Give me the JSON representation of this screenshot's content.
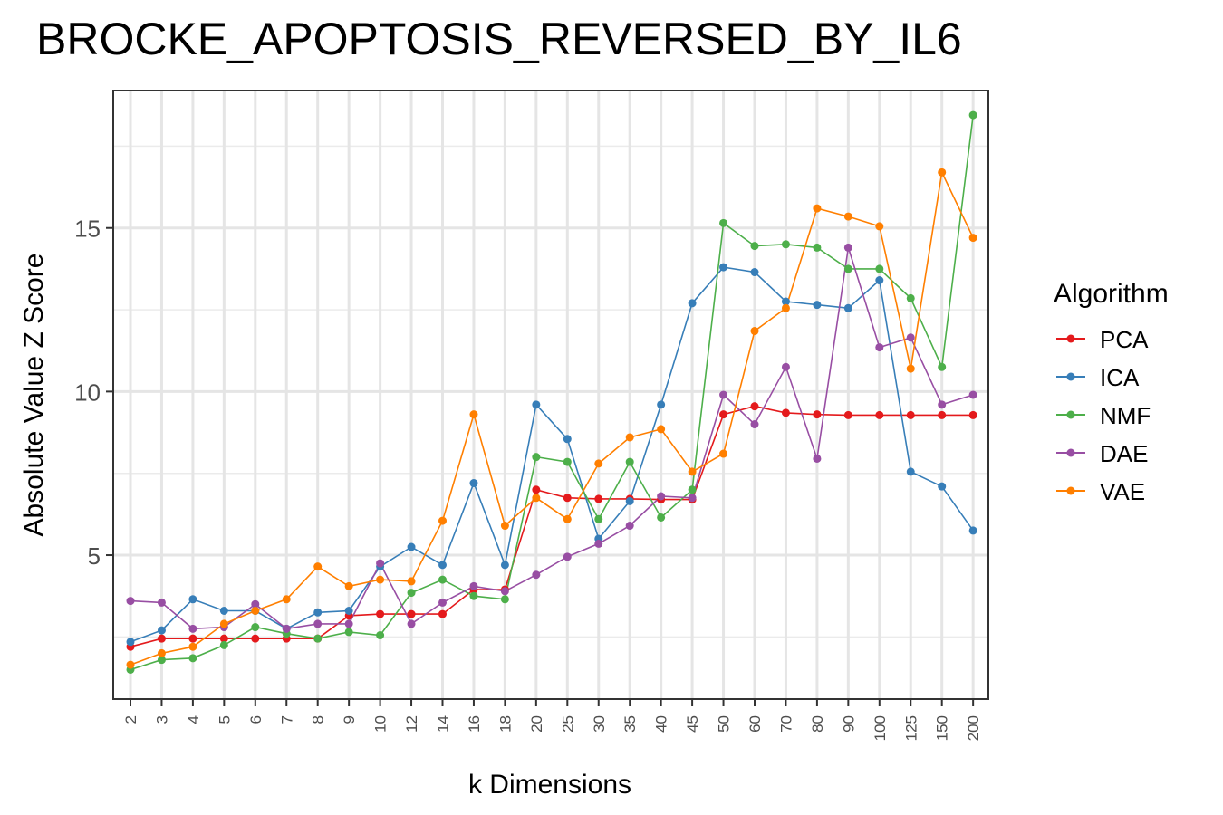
{
  "chart_data": {
    "type": "line",
    "title": "BROCKE_APOPTOSIS_REVERSED_BY_IL6",
    "xlabel": "k Dimensions",
    "ylabel": "Absolute Value Z Score",
    "categories": [
      "2",
      "3",
      "4",
      "5",
      "6",
      "7",
      "8",
      "9",
      "10",
      "12",
      "14",
      "16",
      "18",
      "20",
      "25",
      "30",
      "35",
      "40",
      "45",
      "50",
      "60",
      "70",
      "80",
      "90",
      "100",
      "125",
      "150",
      "200"
    ],
    "ylim": [
      0.6,
      19.2
    ],
    "yticks": [
      5,
      10,
      15
    ],
    "grid": true,
    "legend": {
      "title": "Algorithm",
      "position": "right"
    },
    "series": [
      {
        "name": "PCA",
        "color": "#E41A1C",
        "values": [
          2.2,
          2.45,
          2.45,
          2.45,
          2.45,
          2.45,
          2.45,
          3.15,
          3.2,
          3.2,
          3.2,
          3.95,
          3.95,
          7.0,
          6.75,
          6.72,
          6.72,
          6.7,
          6.7,
          9.3,
          9.55,
          9.35,
          9.3,
          9.28,
          9.28,
          9.28,
          9.28,
          9.28
        ]
      },
      {
        "name": "ICA",
        "color": "#377EB8",
        "values": [
          2.35,
          2.7,
          3.65,
          3.3,
          3.3,
          2.75,
          3.25,
          3.3,
          4.65,
          5.25,
          4.7,
          7.2,
          4.7,
          9.6,
          8.55,
          5.5,
          6.65,
          9.6,
          12.7,
          13.8,
          13.65,
          12.75,
          12.65,
          12.55,
          13.4,
          7.55,
          7.1,
          5.75
        ]
      },
      {
        "name": "NMF",
        "color": "#4DAF4A",
        "values": [
          1.5,
          1.8,
          1.85,
          2.25,
          2.8,
          2.6,
          2.45,
          2.65,
          2.55,
          3.85,
          4.25,
          3.75,
          3.65,
          8.0,
          7.85,
          6.1,
          7.85,
          6.15,
          7.0,
          15.15,
          14.45,
          14.5,
          14.4,
          13.75,
          13.75,
          12.85,
          10.75,
          18.45
        ]
      },
      {
        "name": "DAE",
        "color": "#984EA3",
        "values": [
          3.6,
          3.55,
          2.75,
          2.8,
          3.5,
          2.75,
          2.9,
          2.9,
          4.75,
          2.9,
          3.55,
          4.05,
          3.9,
          4.4,
          4.95,
          5.35,
          5.9,
          6.8,
          6.75,
          9.9,
          9.0,
          10.75,
          7.95,
          14.4,
          11.35,
          11.65,
          9.6,
          9.9
        ]
      },
      {
        "name": "VAE",
        "color": "#FF7F00",
        "values": [
          1.65,
          2.0,
          2.2,
          2.9,
          3.3,
          3.65,
          4.65,
          4.05,
          4.25,
          4.2,
          6.05,
          9.3,
          5.9,
          6.75,
          6.1,
          7.8,
          8.6,
          8.85,
          7.55,
          8.1,
          11.85,
          12.55,
          15.6,
          15.35,
          15.05,
          10.7,
          16.7,
          14.7
        ]
      }
    ]
  }
}
